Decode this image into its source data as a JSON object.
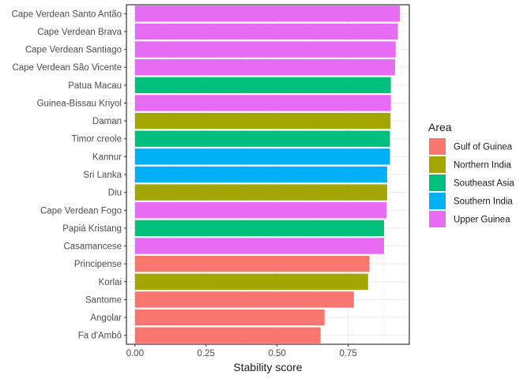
{
  "chart_data": {
    "type": "bar",
    "orientation": "horizontal",
    "xlabel": "Stability score",
    "ylabel": "",
    "xlim": [
      -0.03,
      0.965
    ],
    "x_ticks": [
      0.0,
      0.25,
      0.5,
      0.75
    ],
    "x_tick_labels": [
      "0.00",
      "0.25",
      "0.50",
      "0.75"
    ],
    "grid": true,
    "legend": {
      "title": "Area",
      "position": "right",
      "entries": [
        {
          "name": "Gulf of Guinea",
          "color": "#F8766D"
        },
        {
          "name": "Northern India",
          "color": "#A3A500"
        },
        {
          "name": "Southeast Asia",
          "color": "#00BF7D"
        },
        {
          "name": "Southern India",
          "color": "#00B0F6"
        },
        {
          "name": "Upper Guinea",
          "color": "#E76BF3"
        }
      ]
    },
    "bars": [
      {
        "label": "Cape Verdean Santo Antão",
        "value": 0.932,
        "area": "Upper Guinea"
      },
      {
        "label": "Cape Verdean Brava",
        "value": 0.925,
        "area": "Upper Guinea"
      },
      {
        "label": "Cape Verdean Santiago",
        "value": 0.917,
        "area": "Upper Guinea"
      },
      {
        "label": "Cape Verdean São Vicente",
        "value": 0.915,
        "area": "Upper Guinea"
      },
      {
        "label": "Patua Macau",
        "value": 0.9,
        "area": "Southeast Asia"
      },
      {
        "label": "Guinea-Bissau Kriyol",
        "value": 0.9,
        "area": "Upper Guinea"
      },
      {
        "label": "Daman",
        "value": 0.899,
        "area": "Northern India"
      },
      {
        "label": "Timor creole",
        "value": 0.897,
        "area": "Southeast Asia"
      },
      {
        "label": "Kannur",
        "value": 0.897,
        "area": "Southern India"
      },
      {
        "label": "Sri Lanka",
        "value": 0.887,
        "area": "Southern India"
      },
      {
        "label": "Diu",
        "value": 0.887,
        "area": "Northern India"
      },
      {
        "label": "Cape Verdean Fogo",
        "value": 0.885,
        "area": "Upper Guinea"
      },
      {
        "label": "Papiá Kristang",
        "value": 0.876,
        "area": "Southeast Asia"
      },
      {
        "label": "Casamancese",
        "value": 0.876,
        "area": "Upper Guinea"
      },
      {
        "label": "Principense",
        "value": 0.825,
        "area": "Gulf of Guinea"
      },
      {
        "label": "Korlai",
        "value": 0.82,
        "area": "Northern India"
      },
      {
        "label": "Santome",
        "value": 0.77,
        "area": "Gulf of Guinea"
      },
      {
        "label": "Angolar",
        "value": 0.667,
        "area": "Gulf of Guinea"
      },
      {
        "label": "Fa d'Ambô",
        "value": 0.653,
        "area": "Gulf of Guinea"
      }
    ]
  }
}
